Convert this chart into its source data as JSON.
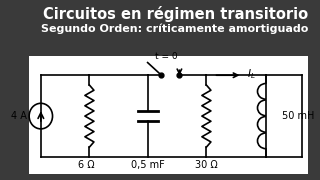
{
  "title": "Circuitos en régimen transitorio",
  "subtitle": "Segundo Orden: críticamente amortiguado",
  "bg_color": "#3a3a3a",
  "title_color": "#ffffff",
  "circuit_color": "#000000",
  "wire_color": "#1a1a1a",
  "title_fontsize": 10.5,
  "subtitle_fontsize": 8.0,
  "current_source_label": "4 A",
  "r1_label": "6 Ω",
  "c_label": "0,5 mF",
  "r2_label": "30 Ω",
  "l_label": "50 mH",
  "il_label": "I",
  "il_sub": "L",
  "t0_label": "t = 0"
}
